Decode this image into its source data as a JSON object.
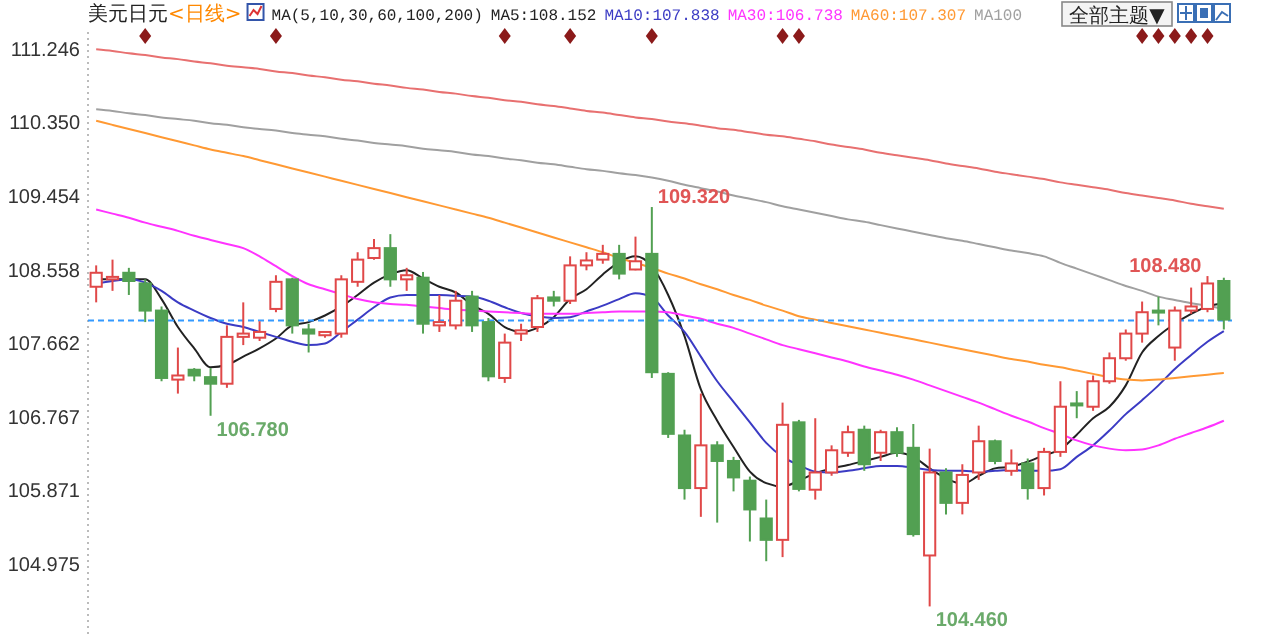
{
  "chart_data": {
    "type": "candlestick",
    "title": "美元日元",
    "subtitle": "<日线>",
    "legend_title": "MA(5,10,30,60,100,200)",
    "legend": "top",
    "categories": [
      null,
      null,
      null,
      null,
      null,
      null,
      null,
      null,
      null,
      null,
      null,
      null,
      null,
      null,
      null,
      null,
      null,
      null,
      null,
      null,
      null,
      null,
      null,
      null,
      null,
      null,
      null,
      null,
      null,
      null,
      null,
      null,
      null,
      null,
      null,
      null,
      null,
      null,
      null,
      null,
      null,
      null,
      null,
      null,
      null,
      null,
      null,
      null,
      null,
      null,
      null,
      null,
      null,
      null,
      null,
      null,
      null,
      null,
      null,
      null,
      null,
      null,
      null,
      null,
      null,
      null,
      null,
      null,
      null,
      null
    ],
    "ylim": [
      104.1,
      111.45
    ],
    "yticks": [
      {
        "value": 111.246,
        "label": "111.246"
      },
      {
        "value": 110.35,
        "label": "110.350"
      },
      {
        "value": 109.454,
        "label": "109.454"
      },
      {
        "value": 108.558,
        "label": "108.558"
      },
      {
        "value": 107.662,
        "label": "107.662"
      },
      {
        "value": 106.767,
        "label": "106.767"
      },
      {
        "value": 105.871,
        "label": "105.871"
      },
      {
        "value": 104.975,
        "label": "104.975"
      }
    ],
    "ohlc": [
      [
        108.35,
        108.61,
        108.16,
        108.52
      ],
      [
        108.44,
        108.68,
        108.3,
        108.47
      ],
      [
        108.52,
        108.58,
        108.25,
        108.42
      ],
      [
        108.39,
        108.44,
        107.92,
        108.06
      ],
      [
        108.06,
        108.11,
        107.2,
        107.24
      ],
      [
        107.22,
        107.61,
        107.05,
        107.27
      ],
      [
        107.34,
        107.36,
        107.2,
        107.27
      ],
      [
        107.25,
        107.36,
        106.78,
        107.17
      ],
      [
        107.17,
        107.88,
        107.12,
        107.74
      ],
      [
        107.74,
        108.16,
        107.64,
        107.78
      ],
      [
        107.73,
        107.93,
        107.69,
        107.8
      ],
      [
        108.08,
        108.49,
        108.04,
        108.41
      ],
      [
        108.44,
        108.46,
        107.78,
        107.88
      ],
      [
        107.83,
        107.9,
        107.55,
        107.78
      ],
      [
        107.76,
        107.81,
        107.73,
        107.8
      ],
      [
        107.78,
        108.49,
        107.73,
        108.44
      ],
      [
        108.41,
        108.77,
        108.35,
        108.68
      ],
      [
        108.7,
        108.93,
        108.68,
        108.82
      ],
      [
        108.82,
        108.99,
        108.35,
        108.44
      ],
      [
        108.44,
        108.58,
        108.3,
        108.49
      ],
      [
        108.46,
        108.53,
        107.78,
        107.9
      ],
      [
        107.88,
        108.25,
        107.8,
        107.92
      ],
      [
        107.88,
        108.3,
        107.83,
        108.18
      ],
      [
        108.23,
        108.3,
        107.8,
        107.88
      ],
      [
        107.92,
        107.97,
        107.2,
        107.26
      ],
      [
        107.24,
        107.78,
        107.18,
        107.67
      ],
      [
        107.78,
        107.9,
        107.69,
        107.82
      ],
      [
        107.86,
        108.25,
        107.8,
        108.21
      ],
      [
        108.22,
        108.3,
        108.11,
        108.18
      ],
      [
        108.18,
        108.72,
        108.14,
        108.61
      ],
      [
        108.61,
        108.77,
        108.55,
        108.67
      ],
      [
        108.68,
        108.86,
        108.63,
        108.75
      ],
      [
        108.75,
        108.86,
        108.44,
        108.51
      ],
      [
        108.56,
        108.96,
        108.55,
        108.66
      ],
      [
        108.75,
        109.32,
        107.24,
        107.31
      ],
      [
        107.29,
        107.31,
        106.51,
        106.56
      ],
      [
        106.54,
        106.61,
        105.76,
        105.9
      ],
      [
        105.9,
        107.05,
        105.55,
        106.42
      ],
      [
        106.42,
        106.47,
        105.48,
        106.23
      ],
      [
        106.23,
        106.28,
        105.86,
        106.03
      ],
      [
        105.99,
        106.04,
        105.25,
        105.64
      ],
      [
        105.53,
        105.76,
        105.01,
        105.27
      ],
      [
        105.27,
        106.94,
        105.06,
        106.67
      ],
      [
        106.7,
        106.73,
        105.86,
        105.89
      ],
      [
        105.88,
        106.75,
        105.76,
        106.09
      ],
      [
        106.09,
        106.42,
        106.05,
        106.36
      ],
      [
        106.33,
        106.66,
        106.28,
        106.58
      ],
      [
        106.61,
        106.66,
        106.11,
        106.19
      ],
      [
        106.33,
        106.61,
        106.23,
        106.58
      ],
      [
        106.58,
        106.64,
        106.28,
        106.33
      ],
      [
        106.39,
        106.68,
        105.31,
        105.34
      ],
      [
        105.08,
        106.38,
        104.46,
        106.09
      ],
      [
        106.09,
        106.14,
        105.58,
        105.72
      ],
      [
        105.72,
        106.19,
        105.58,
        106.06
      ],
      [
        106.09,
        106.66,
        106.0,
        106.47
      ],
      [
        106.47,
        106.49,
        106.19,
        106.23
      ],
      [
        106.11,
        106.37,
        106.05,
        106.2
      ],
      [
        106.2,
        106.26,
        105.76,
        105.9
      ],
      [
        105.9,
        106.39,
        105.81,
        106.34
      ],
      [
        106.34,
        107.2,
        106.28,
        106.89
      ],
      [
        106.93,
        107.08,
        106.75,
        106.91
      ],
      [
        106.89,
        107.27,
        106.84,
        107.2
      ],
      [
        107.2,
        107.55,
        107.17,
        107.48
      ],
      [
        107.48,
        107.83,
        107.45,
        107.78
      ],
      [
        107.78,
        108.17,
        107.67,
        108.04
      ],
      [
        108.06,
        108.23,
        107.88,
        108.04
      ],
      [
        107.61,
        108.11,
        107.45,
        108.06
      ],
      [
        108.06,
        108.34,
        108.02,
        108.11
      ],
      [
        108.08,
        108.48,
        108.04,
        108.39
      ],
      [
        108.42,
        108.46,
        107.83,
        107.95
      ]
    ],
    "series": [
      {
        "type": "line",
        "name": "MA5:108.152",
        "color": "#222222",
        "values": [
          108.44,
          108.44,
          108.44,
          108.44,
          108.2,
          107.86,
          107.6,
          107.37,
          107.4,
          107.5,
          107.6,
          107.72,
          107.88,
          107.92,
          108.0,
          108.11,
          108.25,
          108.4,
          108.5,
          108.55,
          108.45,
          108.35,
          108.28,
          108.13,
          108.02,
          107.86,
          107.8,
          107.85,
          107.98,
          108.2,
          108.32,
          108.5,
          108.65,
          108.72,
          108.6,
          108.25,
          107.75,
          107.1,
          106.72,
          106.4,
          106.1,
          105.96,
          105.92,
          105.99,
          106.08,
          106.14,
          106.18,
          106.23,
          106.28,
          106.33,
          106.28,
          106.14,
          106.02,
          105.95,
          106.05,
          106.14,
          106.16,
          106.22,
          106.3,
          106.37,
          106.55,
          106.75,
          106.89,
          107.15,
          107.55,
          107.75,
          107.9,
          108.02,
          108.11,
          108.15
        ]
      },
      {
        "type": "line",
        "name": "MA10:107.838",
        "color": "#3b3bc4",
        "values": [
          108.39,
          108.42,
          108.44,
          108.4,
          108.3,
          108.16,
          108.06,
          107.97,
          107.9,
          107.86,
          107.8,
          107.74,
          107.68,
          107.64,
          107.66,
          107.8,
          107.95,
          108.1,
          108.22,
          108.25,
          108.25,
          108.25,
          108.24,
          108.23,
          108.18,
          108.1,
          108.03,
          107.99,
          107.97,
          107.98,
          108.05,
          108.12,
          108.2,
          108.27,
          108.22,
          108.0,
          107.8,
          107.5,
          107.2,
          106.95,
          106.7,
          106.45,
          106.28,
          106.18,
          106.1,
          106.09,
          106.11,
          106.14,
          106.17,
          106.17,
          106.15,
          106.12,
          106.11,
          106.11,
          106.1,
          106.11,
          106.12,
          106.11,
          106.11,
          106.13,
          106.28,
          106.42,
          106.6,
          106.8,
          106.97,
          107.15,
          107.35,
          107.52,
          107.68,
          107.81
        ]
      },
      {
        "type": "line",
        "name": "MA30:106.738",
        "color": "#ff33ff",
        "values": [
          109.29,
          109.24,
          109.19,
          109.13,
          109.08,
          109.03,
          108.97,
          108.92,
          108.87,
          108.82,
          108.72,
          108.6,
          108.48,
          108.38,
          108.32,
          108.26,
          108.2,
          108.16,
          108.14,
          108.13,
          108.11,
          108.09,
          108.07,
          108.06,
          108.05,
          108.04,
          108.03,
          108.02,
          108.02,
          108.02,
          108.03,
          108.04,
          108.05,
          108.05,
          108.05,
          108.04,
          108.0,
          107.96,
          107.9,
          107.85,
          107.78,
          107.71,
          107.64,
          107.59,
          107.54,
          107.49,
          107.44,
          107.38,
          107.33,
          107.28,
          107.22,
          107.15,
          107.08,
          107.01,
          106.94,
          106.86,
          106.78,
          106.71,
          106.63,
          106.56,
          106.48,
          106.42,
          106.38,
          106.36,
          106.37,
          106.42,
          106.5,
          106.57,
          106.64,
          106.72
        ]
      },
      {
        "type": "line",
        "name": "MA60:107.307",
        "color": "#ff9933",
        "values": [
          110.37,
          110.32,
          110.27,
          110.22,
          110.17,
          110.12,
          110.07,
          110.02,
          109.98,
          109.94,
          109.89,
          109.84,
          109.79,
          109.74,
          109.69,
          109.64,
          109.59,
          109.54,
          109.49,
          109.44,
          109.39,
          109.34,
          109.29,
          109.24,
          109.19,
          109.13,
          109.07,
          109.01,
          108.95,
          108.89,
          108.83,
          108.77,
          108.7,
          108.64,
          108.58,
          108.51,
          108.45,
          108.38,
          108.32,
          108.25,
          108.19,
          108.12,
          108.06,
          107.99,
          107.95,
          107.91,
          107.87,
          107.83,
          107.79,
          107.75,
          107.71,
          107.67,
          107.63,
          107.59,
          107.55,
          107.51,
          107.47,
          107.44,
          107.4,
          107.37,
          107.33,
          107.29,
          107.25,
          107.22,
          107.21,
          107.22,
          107.24,
          107.26,
          107.28,
          107.3
        ]
      },
      {
        "type": "line",
        "name": "MA100",
        "color": "#a0a0a0",
        "values": [
          110.51,
          110.49,
          110.46,
          110.44,
          110.41,
          110.39,
          110.37,
          110.34,
          110.32,
          110.29,
          110.27,
          110.25,
          110.22,
          110.2,
          110.18,
          110.15,
          110.13,
          110.1,
          110.08,
          110.06,
          110.03,
          110.01,
          109.99,
          109.96,
          109.94,
          109.91,
          109.89,
          109.86,
          109.84,
          109.81,
          109.78,
          109.76,
          109.73,
          109.71,
          109.68,
          109.64,
          109.59,
          109.55,
          109.51,
          109.46,
          109.42,
          109.38,
          109.33,
          109.29,
          109.25,
          109.21,
          109.17,
          109.14,
          109.1,
          109.06,
          109.02,
          108.98,
          108.94,
          108.91,
          108.87,
          108.83,
          108.79,
          108.76,
          108.72,
          108.64,
          108.57,
          108.5,
          108.43,
          108.36,
          108.3,
          108.23,
          108.19,
          108.15,
          108.12,
          108.08
        ]
      },
      {
        "type": "line",
        "color": "#e87070",
        "values": [
          111.24,
          111.22,
          111.19,
          111.17,
          111.14,
          111.12,
          111.09,
          111.07,
          111.04,
          111.02,
          111.0,
          110.97,
          110.95,
          110.92,
          110.9,
          110.87,
          110.85,
          110.82,
          110.8,
          110.77,
          110.75,
          110.72,
          110.7,
          110.67,
          110.65,
          110.62,
          110.6,
          110.57,
          110.55,
          110.52,
          110.49,
          110.47,
          110.44,
          110.41,
          110.39,
          110.36,
          110.34,
          110.31,
          110.28,
          110.26,
          110.23,
          110.2,
          110.18,
          110.15,
          110.12,
          110.08,
          110.05,
          110.02,
          109.98,
          109.95,
          109.92,
          109.89,
          109.85,
          109.82,
          109.79,
          109.75,
          109.72,
          109.69,
          109.66,
          109.62,
          109.59,
          109.56,
          109.53,
          109.49,
          109.46,
          109.43,
          109.4,
          109.36,
          109.33,
          109.3
        ]
      }
    ],
    "ref_lines": [
      {
        "axis": "y",
        "value": 107.94,
        "color": "#3399ff",
        "line_style": "dashed"
      }
    ],
    "annotations": [
      "全部主题▼",
      "109.320",
      "106.780",
      "104.460",
      "108.480"
    ]
  }
}
